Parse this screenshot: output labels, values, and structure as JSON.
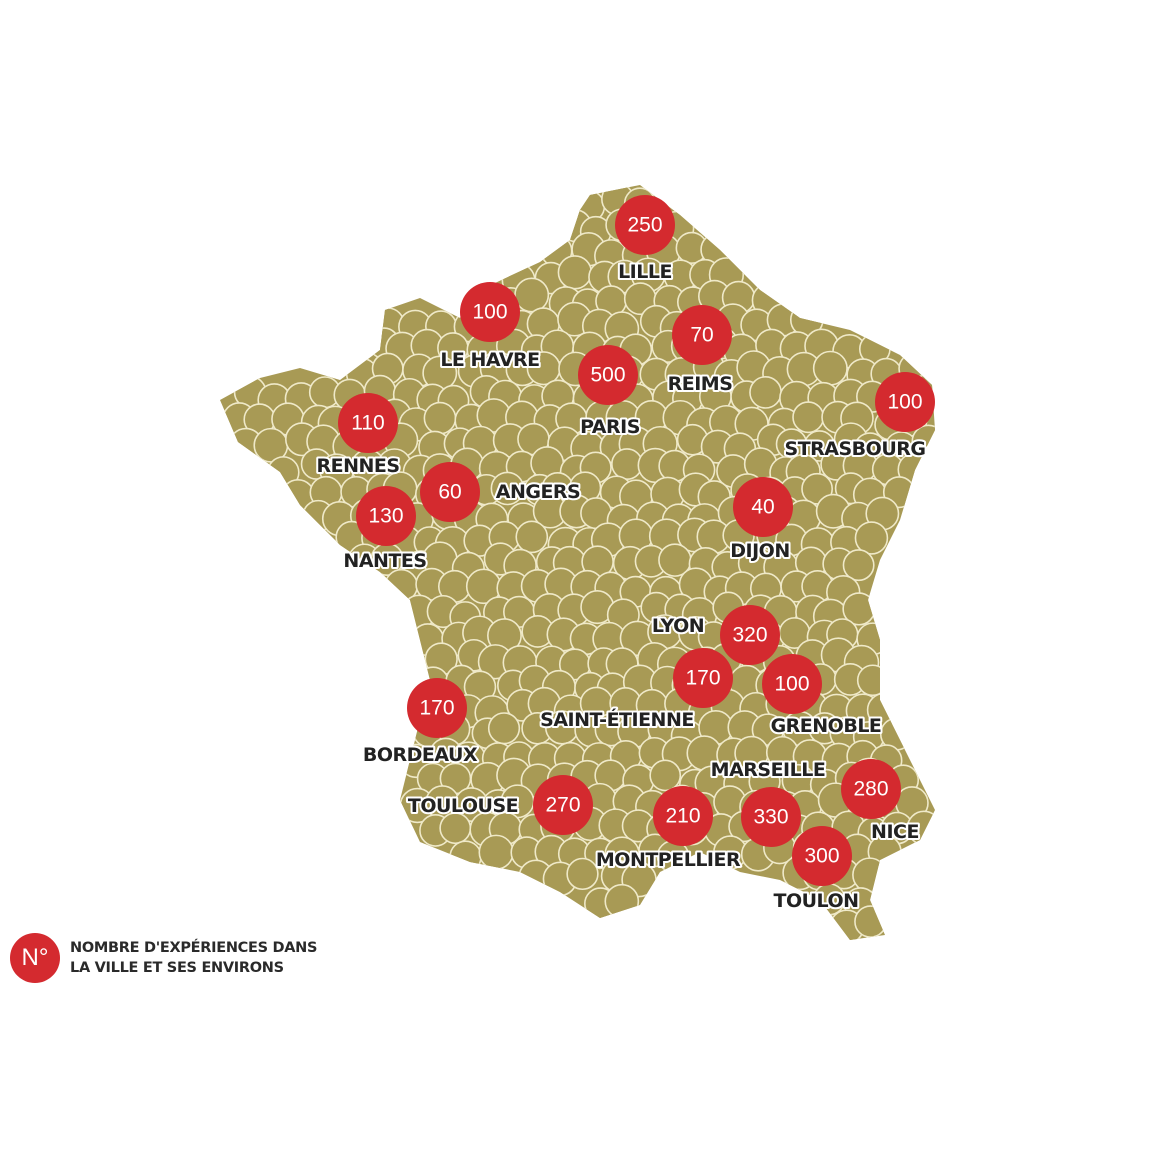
{
  "colors": {
    "land": "#a89a55",
    "outline": "#efe9c8",
    "marker": "#d42a2f",
    "label": "#222222"
  },
  "cities": [
    {
      "name": "LILLE",
      "value": "250"
    },
    {
      "name": "LE HAVRE",
      "value": "100"
    },
    {
      "name": "REIMS",
      "value": "70"
    },
    {
      "name": "PARIS",
      "value": "500"
    },
    {
      "name": "STRASBOURG",
      "value": "100"
    },
    {
      "name": "RENNES",
      "value": "110"
    },
    {
      "name": "ANGERS",
      "value": "60"
    },
    {
      "name": "NANTES",
      "value": "130"
    },
    {
      "name": "DIJON",
      "value": "40"
    },
    {
      "name": "LYON",
      "value": "320"
    },
    {
      "name": "SAINT-ÉTIENNE",
      "value": "170"
    },
    {
      "name": "GRENOBLE",
      "value": "100"
    },
    {
      "name": "BORDEAUX",
      "value": "170"
    },
    {
      "name": "MARSEILLE",
      "value": "330"
    },
    {
      "name": "NICE",
      "value": "280"
    },
    {
      "name": "TOULOUSE",
      "value": "270"
    },
    {
      "name": "MONTPELLIER",
      "value": "210"
    },
    {
      "name": "TOULON",
      "value": "300"
    }
  ],
  "legend": {
    "badge": "N°",
    "line1": "NOMBRE D'EXPÉRIENCES DANS",
    "line2": "LA VILLE ET SES ENVIRONS"
  }
}
